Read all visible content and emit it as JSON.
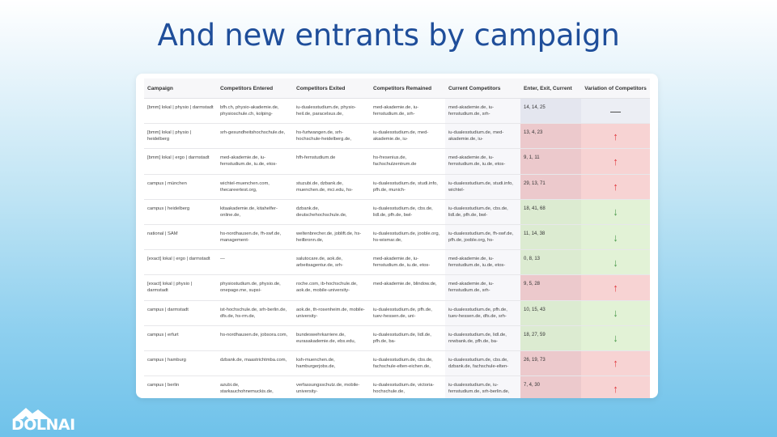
{
  "title": "And new entrants by campaign",
  "logo": {
    "text": "DOLNAI"
  },
  "table": {
    "headers": {
      "campaign": "Campaign",
      "entered": "Competitors Entered",
      "exited": "Competitors Exited",
      "remained": "Competitors Remained",
      "current": "Current Competitors",
      "counts": "Enter, Exit, Current",
      "variation": "Variation of Competitors"
    },
    "rows": [
      {
        "campaign": "[bmm] lokal | physio | darmstadt",
        "entered": "bfh.ch, physio-akademie.de, physioschule.ch, kolping-",
        "exited": "iu-dualesstudium.de, physio-heil.de, paracelsus.de,",
        "remained": "med-akademie.de, iu-fernstudium.de, srh-",
        "current": "med-akademie.de, iu-fernstudium.de, srh-",
        "counts": "14, 14, 25",
        "variation": "—",
        "trend": "flat"
      },
      {
        "campaign": "[bmm] lokal | physio | heidelberg",
        "entered": "srh-gesundheitshochschule.de,",
        "exited": "hs-furtwangen.de, srh-hochschule-heidelberg.de,",
        "remained": "iu-dualesstudium.de, med-akademie.de, iu-",
        "current": "iu-dualesstudium.de, med-akademie.de, iu-",
        "counts": "13, 4, 23",
        "variation": "↑",
        "trend": "up"
      },
      {
        "campaign": "[bmm] lokal | ergo | darmstadt",
        "entered": "med-akademie.de, iu-fernstudium.de, iu.de, etos-",
        "exited": "hfh-fernstudium.de",
        "remained": "hs-fresenius.de, fachschulzentrum.de",
        "current": "med-akademie.de, iu-fernstudium.de, iu.de, etos-",
        "counts": "9, 1, 11",
        "variation": "↑",
        "trend": "up"
      },
      {
        "campaign": "campus | münchen",
        "entered": "wichtel-muenchen.com, thecareertest.org,",
        "exited": "stuzubi.de, dzbank.de, muenchen.de, mci.edu, hs-",
        "remained": "iu-dualesstudium.de, studi.info, pfh.de, munich-",
        "current": "iu-dualesstudium.de, studi.info, wichtel-",
        "counts": "29, 13, 71",
        "variation": "↑",
        "trend": "up"
      },
      {
        "campaign": "campus | heidelberg",
        "entered": "kitaakademie.de, kitahelfer-online.de,",
        "exited": "dzbank.de, deutschehochschule.de,",
        "remained": "iu-dualesstudium.de, cbs.de, lidl.de, pfh.de, bwl-",
        "current": "iu-dualesstudium.de, cbs.de, lidl.de, pfh.de, bwl-",
        "counts": "18, 41, 68",
        "variation": "↓",
        "trend": "down"
      },
      {
        "campaign": "national | SAM",
        "entered": "hs-nordhausen.de, fh-swf.de, management-",
        "exited": "weltenbrecher.de, joblift.de, hs-heilbronn.de,",
        "remained": "iu-dualesstudium.de, jooble.org, hs-wismar.de,",
        "current": "iu-dualesstudium.de, fh-swf.de, pfh.de, jooble.org, hs-",
        "counts": "11, 14, 38",
        "variation": "↓",
        "trend": "down"
      },
      {
        "campaign": "[exact] lokal | ergo | darmstadt",
        "entered": "—",
        "exited": "salutocare.de, aok.de, arbeitsagentur.de, srh-",
        "remained": "med-akademie.de, iu-fernstudium.de, iu.de, etos-",
        "current": "med-akademie.de, iu-fernstudium.de, iu.de, etos-",
        "counts": "0, 8, 13",
        "variation": "↓",
        "trend": "down"
      },
      {
        "campaign": "[exact] lokal | physio | darmstadt",
        "entered": "physiostudium.de, physio.de, onepage.me, supsi-",
        "exited": "roche.com, ib-hochschule.de, aok.de, mobile-university-",
        "remained": "med-akademie.de, blindow.de,",
        "current": "med-akademie.de, iu-fernstudium.de, srh-",
        "counts": "9, 5, 28",
        "variation": "↑",
        "trend": "up"
      },
      {
        "campaign": "campus | darmstadt",
        "entered": "ist-hochschule.de, srh-berlin.de, dfs.de, hs-rm.de,",
        "exited": "aok.de, th-rosenheim.de, mobile-university-",
        "remained": "iu-dualesstudium.de, pfh.de, tuev-hessen.de, uni-",
        "current": "iu-dualesstudium.de, pfh.de, tuev-hessen.de, dfs.de, srh-",
        "counts": "10, 15, 43",
        "variation": "↓",
        "trend": "down"
      },
      {
        "campaign": "campus | erfurt",
        "entered": "hs-nordhausen.de, jobsora.com,",
        "exited": "bundeswehrkarriere.de, eurasakademie.de, ebs.edu,",
        "remained": "iu-dualesstudium.de, lidl.de, pfh.de, ba-",
        "current": "iu-dualesstudium.de, lidl.de, nrwbank.de, pfh.de, ba-",
        "counts": "18, 27, 59",
        "variation": "↓",
        "trend": "down"
      },
      {
        "campaign": "campus | hamburg",
        "entered": "dzbank.de, maastrichtmba.com,",
        "exited": "ksh-muenchen.de, hamburgerjobs.de,",
        "remained": "iu-dualesstudium.de, cbs.de, fachschule-elten-eichen.de,",
        "current": "iu-dualesstudium.de, cbs.de, dzbank.de, fachschule-elten-",
        "counts": "26, 19, 73",
        "variation": "↑",
        "trend": "up"
      },
      {
        "campaign": "campus | berlin",
        "entered": "azubi.de, starkauchohnemuckis.de,",
        "exited": "verfassungsschutz.de, mobile-university-",
        "remained": "iu-dualesstudium.de, victoria-hochschule.de,",
        "current": "iu-dualesstudium.de, iu-fernstudium.de, srh-berlin.de,",
        "counts": "7, 4, 30",
        "variation": "↑",
        "trend": "up"
      }
    ]
  }
}
